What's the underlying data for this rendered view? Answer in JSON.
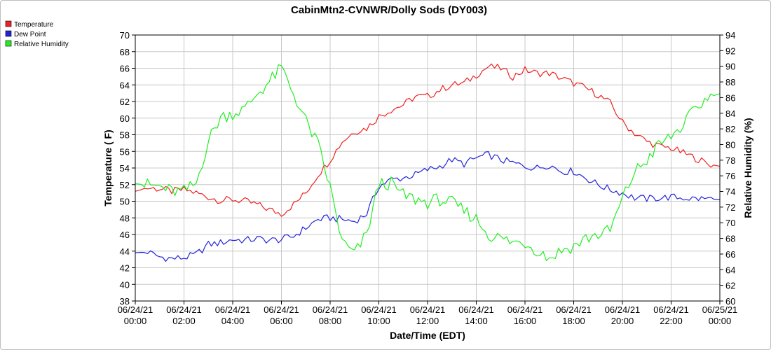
{
  "chart_data": {
    "type": "line",
    "title": "CabinMtn2-CVNWR/Dolly Sods (DY003)",
    "xlabel": "Date/Time (EDT)",
    "ylabel": "Temperature ( F)",
    "y2label": "Relative Humidity (%)",
    "ylim": [
      38,
      70
    ],
    "y2lim": [
      60,
      94
    ],
    "yticks": [
      38,
      40,
      42,
      44,
      46,
      48,
      50,
      52,
      54,
      56,
      58,
      60,
      62,
      64,
      66,
      68,
      70
    ],
    "y2ticks": [
      60,
      62,
      64,
      66,
      68,
      70,
      72,
      74,
      76,
      78,
      80,
      82,
      84,
      86,
      88,
      90,
      92,
      94
    ],
    "xlim": [
      "06/24/21 00:00",
      "06/25/21 00:00"
    ],
    "x_hours": [
      0,
      0.5,
      1,
      1.5,
      2,
      2.5,
      3,
      3.5,
      4,
      4.5,
      5,
      5.5,
      6,
      6.5,
      7,
      7.5,
      8,
      8.5,
      9,
      9.5,
      10,
      10.5,
      11,
      11.5,
      12,
      12.5,
      13,
      13.5,
      14,
      14.5,
      15,
      15.5,
      16,
      16.5,
      17,
      17.5,
      18,
      18.5,
      19,
      19.5,
      20,
      20.5,
      21,
      21.5,
      22,
      22.5,
      23,
      23.5,
      24
    ],
    "xticks": [
      {
        "date": "06/24/21",
        "time": "00:00"
      },
      {
        "date": "06/24/21",
        "time": "02:00"
      },
      {
        "date": "06/24/21",
        "time": "04:00"
      },
      {
        "date": "06/24/21",
        "time": "06:00"
      },
      {
        "date": "06/24/21",
        "time": "08:00"
      },
      {
        "date": "06/24/21",
        "time": "10:00"
      },
      {
        "date": "06/24/21",
        "time": "12:00"
      },
      {
        "date": "06/24/21",
        "time": "14:00"
      },
      {
        "date": "06/24/21",
        "time": "16:00"
      },
      {
        "date": "06/24/21",
        "time": "18:00"
      },
      {
        "date": "06/24/21",
        "time": "20:00"
      },
      {
        "date": "06/24/21",
        "time": "22:00"
      },
      {
        "date": "06/25/21",
        "time": "00:00"
      }
    ],
    "grid": true,
    "legend_position": "top-left",
    "series": [
      {
        "name": "Temperature",
        "color": "#ee2222",
        "axis": "left",
        "values": [
          51.2,
          51.6,
          51.5,
          51.2,
          51.4,
          51.0,
          50.5,
          50.1,
          50.2,
          50.0,
          49.6,
          49.0,
          48.5,
          49.6,
          51.0,
          53.2,
          55.0,
          57.2,
          58.4,
          58.8,
          60.2,
          61.0,
          61.6,
          62.6,
          62.6,
          63.4,
          64.0,
          64.2,
          65.2,
          66.2,
          66.0,
          65.0,
          65.8,
          65.4,
          65.4,
          64.8,
          64.2,
          63.6,
          62.8,
          61.8,
          59.5,
          58.2,
          57.2,
          56.6,
          56.4,
          55.8,
          55.2,
          54.5,
          54.2
        ]
      },
      {
        "name": "Dew Point",
        "color": "#2222dd",
        "axis": "left",
        "values": [
          43.8,
          43.9,
          43.3,
          43.1,
          43.2,
          43.6,
          44.8,
          45.0,
          45.4,
          45.3,
          45.5,
          45.3,
          45.4,
          45.8,
          46.8,
          47.8,
          48.0,
          47.8,
          47.6,
          48.5,
          51.8,
          52.6,
          52.8,
          53.2,
          53.8,
          54.2,
          55.0,
          54.5,
          55.2,
          55.6,
          55.0,
          54.6,
          54.2,
          54.0,
          54.4,
          53.6,
          53.6,
          52.8,
          52.0,
          51.4,
          51.0,
          50.4,
          50.3,
          50.4,
          50.5,
          50.4,
          50.3,
          50.3,
          50.2
        ]
      },
      {
        "name": "Relative Humidity",
        "color": "#22ee22",
        "axis": "right",
        "values": [
          75.0,
          74.8,
          74.6,
          74.0,
          74.0,
          75.0,
          80.5,
          83.5,
          84.0,
          84.5,
          86.5,
          88.0,
          89.8,
          86.5,
          83.0,
          80.0,
          74.5,
          67.5,
          66.0,
          68.5,
          75.0,
          75.0,
          73.5,
          73.0,
          72.6,
          73.0,
          72.5,
          71.5,
          70.5,
          68.5,
          68.0,
          67.5,
          67.5,
          66.5,
          65.5,
          66.5,
          67.0,
          68.0,
          68.5,
          69.0,
          73.0,
          76.5,
          78.0,
          80.0,
          81.0,
          82.5,
          84.5,
          86.0,
          86.5
        ]
      }
    ]
  }
}
